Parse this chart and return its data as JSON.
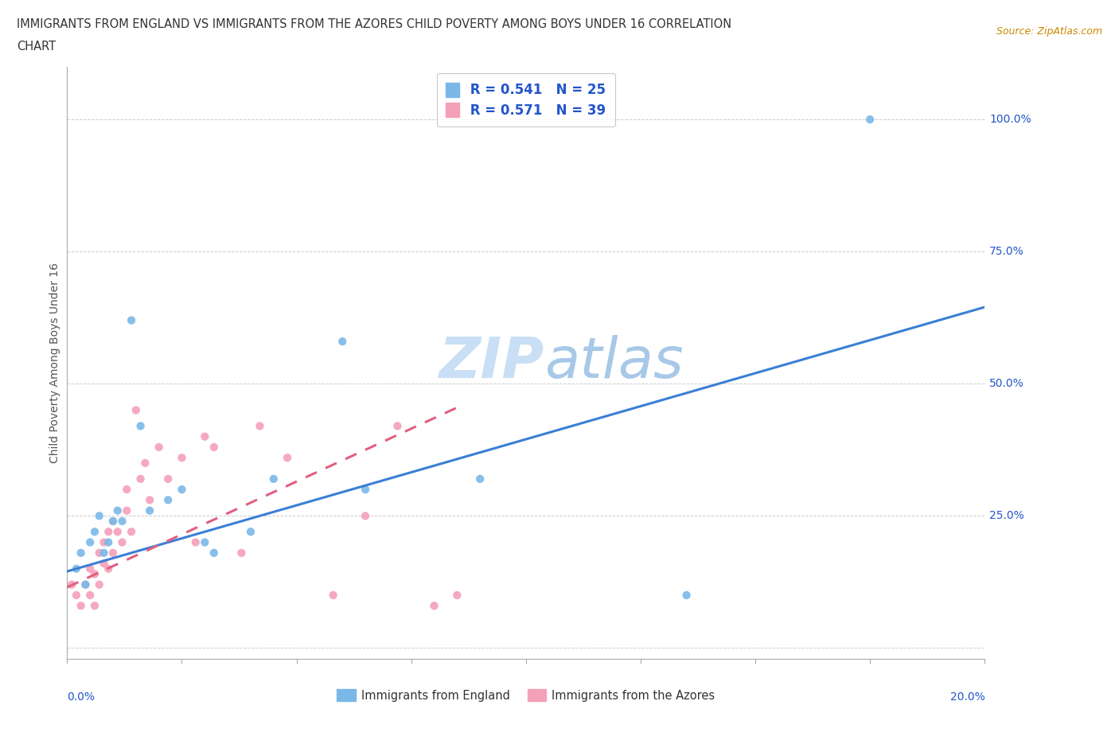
{
  "title_line1": "IMMIGRANTS FROM ENGLAND VS IMMIGRANTS FROM THE AZORES CHILD POVERTY AMONG BOYS UNDER 16 CORRELATION",
  "title_line2": "CHART",
  "source": "Source: ZipAtlas.com",
  "ylabel": "Child Poverty Among Boys Under 16",
  "england_color": "#7ab8e8",
  "azores_color": "#f4a0b8",
  "england_line_color": "#3a7fd5",
  "azores_line_color": "#e06080",
  "england_R": 0.541,
  "england_N": 25,
  "azores_R": 0.571,
  "azores_N": 39,
  "legend_color": "#2255cc",
  "grid_color": "#cccccc",
  "watermark_color": "#c8dff5",
  "xlim": [
    0.0,
    0.2
  ],
  "ylim": [
    -0.02,
    1.1
  ],
  "ytick_positions": [
    0.0,
    0.25,
    0.5,
    0.75,
    1.0
  ],
  "ytick_labels": [
    "",
    "25.0%",
    "50.0%",
    "75.0%",
    "100.0%"
  ],
  "xtick_positions": [
    0.0,
    0.025,
    0.05,
    0.075,
    0.1,
    0.125,
    0.15,
    0.175,
    0.2
  ],
  "england_scatter_x": [
    0.002,
    0.003,
    0.004,
    0.005,
    0.006,
    0.007,
    0.008,
    0.009,
    0.01,
    0.011,
    0.012,
    0.014,
    0.016,
    0.018,
    0.022,
    0.025,
    0.03,
    0.032,
    0.04,
    0.045,
    0.06,
    0.065,
    0.09,
    0.135,
    0.175
  ],
  "england_scatter_y": [
    0.15,
    0.18,
    0.12,
    0.2,
    0.22,
    0.25,
    0.18,
    0.2,
    0.24,
    0.26,
    0.24,
    0.62,
    0.42,
    0.26,
    0.28,
    0.3,
    0.2,
    0.18,
    0.22,
    0.32,
    0.58,
    0.3,
    0.32,
    0.1,
    1.0
  ],
  "azores_scatter_x": [
    0.001,
    0.002,
    0.003,
    0.004,
    0.005,
    0.005,
    0.006,
    0.006,
    0.007,
    0.007,
    0.008,
    0.008,
    0.009,
    0.009,
    0.01,
    0.01,
    0.011,
    0.012,
    0.013,
    0.013,
    0.014,
    0.015,
    0.016,
    0.017,
    0.018,
    0.02,
    0.022,
    0.025,
    0.028,
    0.03,
    0.032,
    0.038,
    0.042,
    0.048,
    0.058,
    0.065,
    0.072,
    0.08,
    0.085
  ],
  "azores_scatter_y": [
    0.12,
    0.1,
    0.08,
    0.12,
    0.1,
    0.15,
    0.08,
    0.14,
    0.12,
    0.18,
    0.16,
    0.2,
    0.15,
    0.22,
    0.18,
    0.24,
    0.22,
    0.2,
    0.26,
    0.3,
    0.22,
    0.45,
    0.32,
    0.35,
    0.28,
    0.38,
    0.32,
    0.36,
    0.2,
    0.4,
    0.38,
    0.18,
    0.42,
    0.36,
    0.1,
    0.25,
    0.42,
    0.08,
    0.1
  ],
  "england_line_x0": 0.0,
  "england_line_y0": 0.145,
  "england_line_x1": 0.2,
  "england_line_y1": 0.645,
  "azores_line_x0": 0.0,
  "azores_line_y0": 0.115,
  "azores_line_x1": 0.085,
  "azores_line_y1": 0.455
}
